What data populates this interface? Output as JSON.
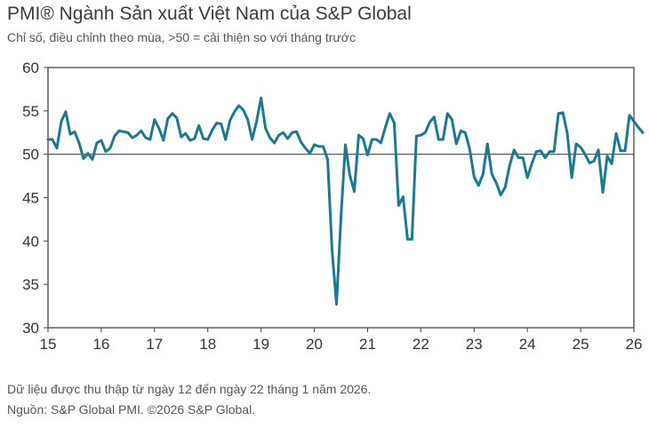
{
  "header": {
    "title": "PMI® Ngành Sản xuất Việt Nam của S&P Global",
    "subtitle": "Chỉ số, điều chỉnh theo mùa, >50 = cải thiện so với tháng trước"
  },
  "footer": {
    "line1": "Dữ liệu được thu thập từ ngày 12 đến ngày 22 tháng 1 năm 2026.",
    "line2": "Nguồn: S&P Global PMI. ©2026 S&P Global."
  },
  "chart_data": {
    "type": "line",
    "title": "PMI® Ngành Sản xuất Việt Nam của S&P Global",
    "xlabel": "",
    "ylabel": "",
    "xlim": [
      2015,
      2026.0
    ],
    "ylim": [
      30,
      60
    ],
    "y_ticks": [
      30,
      35,
      40,
      45,
      50,
      55,
      60
    ],
    "x_tick_labels": [
      "15",
      "16",
      "17",
      "18",
      "19",
      "20",
      "21",
      "22",
      "23",
      "24",
      "25",
      "26"
    ],
    "x_tick_years": [
      2015,
      2016,
      2017,
      2018,
      2019,
      2020,
      2021,
      2022,
      2023,
      2024,
      2025,
      2026
    ],
    "gridlines": false,
    "reference_line": 50,
    "line_color": "#1a7a94",
    "series": [
      {
        "x_start": "2015-01",
        "frequency": "monthly",
        "values": [
          51.7,
          51.7,
          50.7,
          53.8,
          54.9,
          52.3,
          52.6,
          51.3,
          49.5,
          50.1,
          49.4,
          51.3,
          51.6,
          50.3,
          50.7,
          52.1,
          52.7,
          52.6,
          52.5,
          51.9,
          52.2,
          52.7,
          51.9,
          51.7,
          54.0,
          53.0,
          51.6,
          54.1,
          54.7,
          54.2,
          52.0,
          52.4,
          51.6,
          51.8,
          53.3,
          51.8,
          51.7,
          52.8,
          53.6,
          53.5,
          51.7,
          53.9,
          54.9,
          55.6,
          55.1,
          54.0,
          51.7,
          53.8,
          56.5,
          53.0,
          51.9,
          51.3,
          52.2,
          52.5,
          51.8,
          52.5,
          52.6,
          51.4,
          50.7,
          50.1,
          51.1,
          50.9,
          50.9,
          49.4,
          38.9,
          32.7,
          42.7,
          51.1,
          47.6,
          45.7,
          52.2,
          51.8,
          49.9,
          51.7,
          51.7,
          51.3,
          53.1,
          54.7,
          53.6,
          44.1,
          45.1,
          40.2,
          40.2,
          52.1,
          52.2,
          52.5,
          53.7,
          54.3,
          51.7,
          51.7,
          54.7,
          54.0,
          51.2,
          52.7,
          52.5,
          50.6,
          47.4,
          46.4,
          47.7,
          51.2,
          47.7,
          46.7,
          45.3,
          46.2,
          48.7,
          50.5,
          49.6,
          49.6,
          47.3,
          48.9,
          50.3,
          50.4,
          49.6,
          50.3,
          50.3,
          54.7,
          54.8,
          52.4,
          47.3,
          51.2,
          50.8,
          50.0,
          49.0,
          49.2,
          50.5,
          45.6,
          49.8,
          48.9,
          52.4,
          50.4,
          50.4,
          54.5,
          53.8,
          53.1,
          52.5
        ]
      }
    ]
  }
}
